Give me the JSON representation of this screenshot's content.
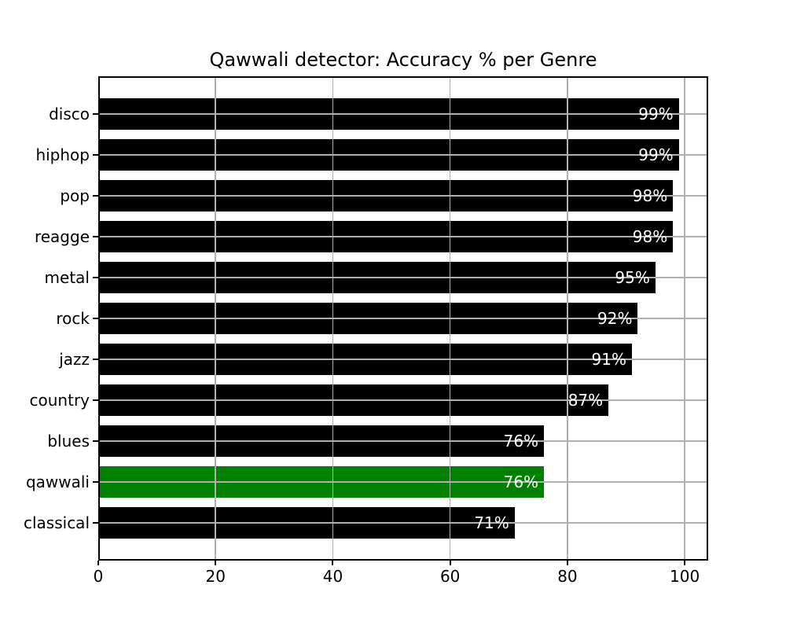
{
  "chart_data": {
    "type": "bar",
    "orientation": "horizontal",
    "title": "Qawwali detector: Accuracy % per Genre",
    "categories": [
      "disco",
      "hiphop",
      "pop",
      "reagge",
      "metal",
      "rock",
      "jazz",
      "country",
      "blues",
      "qawwali",
      "classical"
    ],
    "values": [
      99,
      99,
      98,
      98,
      95,
      92,
      91,
      87,
      76,
      76,
      71
    ],
    "value_labels": [
      "99%",
      "99%",
      "98%",
      "98%",
      "95%",
      "92%",
      "91%",
      "87%",
      "76%",
      "76%",
      "71%"
    ],
    "xlabel": "",
    "ylabel": "",
    "xlim": [
      0,
      104
    ],
    "x_ticks": [
      0,
      20,
      40,
      60,
      80,
      100
    ],
    "grid": true,
    "grid_on_top": true,
    "legend": "none",
    "bar_color": "#000000",
    "highlight_category": "qawwali",
    "highlight_color": "#008000",
    "value_label_color": "#ffffff",
    "grid_color": "#b0b0b0",
    "text_color": "#000000",
    "background_color": "#ffffff"
  }
}
